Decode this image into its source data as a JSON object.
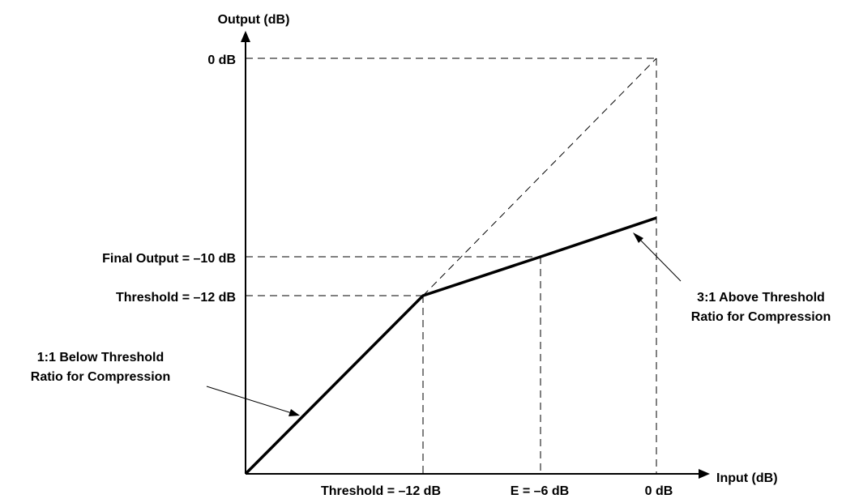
{
  "axes": {
    "y_title": "Output (dB)",
    "x_title": "Input (dB)"
  },
  "y_labels": {
    "top": "0 dB",
    "final_output": "Final Output = –10 dB",
    "threshold": "Threshold = –12 dB"
  },
  "x_labels": {
    "threshold": "Threshold = –12 dB",
    "e_point": "E = –6 dB",
    "zero": "0 dB"
  },
  "annotations": {
    "below": [
      "1:1 Below Threshold",
      "Ratio for Compression"
    ],
    "above": [
      "3:1 Above Threshold",
      "Ratio for Compression"
    ]
  },
  "curve": {
    "threshold_db": -12,
    "ratio_below": "1:1",
    "ratio_above": "3:1",
    "points": [
      {
        "input_db": -21,
        "output_db": -21
      },
      {
        "input_db": -12,
        "output_db": -12
      },
      {
        "input_db": -6,
        "output_db": -10
      },
      {
        "input_db": 0,
        "output_db": -8
      }
    ]
  }
}
